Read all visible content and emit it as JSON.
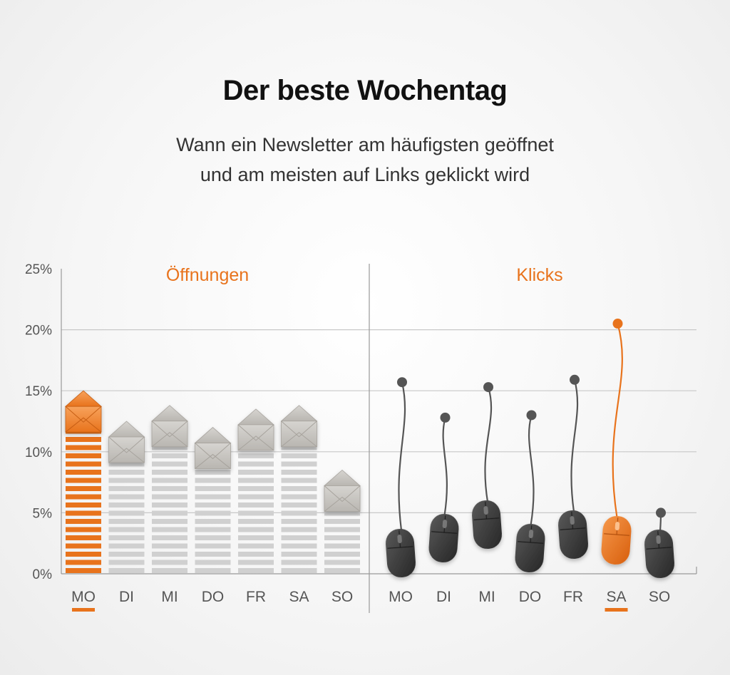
{
  "title": "Der beste Wochentag",
  "subtitle_lines": [
    "Wann ein Newsletter am häufigsten geöffnet",
    "und am meisten auf Links geklickt wird"
  ],
  "colors": {
    "accent": "#e8731c",
    "bar_gray": "#d0d0d0",
    "mouse": "#3a3a3a",
    "cable": "#555555",
    "grid": "#c8c8c8",
    "text": "#555555"
  },
  "chart_data": [
    {
      "type": "bar",
      "title": "Öffnungen",
      "categories": [
        "MO",
        "DI",
        "MI",
        "DO",
        "FR",
        "SA",
        "SO"
      ],
      "values": [
        15.0,
        12.5,
        13.8,
        12.0,
        13.5,
        13.8,
        8.5
      ],
      "highlight": "MO",
      "ylim": [
        0,
        25
      ],
      "yticks": [
        0,
        5,
        10,
        15,
        20,
        25
      ],
      "ytick_labels": [
        "0%",
        "5%",
        "10%",
        "15%",
        "20%",
        "25%"
      ],
      "icon": "envelope-icon"
    },
    {
      "type": "scatter",
      "title": "Klicks",
      "categories": [
        "MO",
        "DI",
        "MI",
        "DO",
        "FR",
        "SA",
        "SO"
      ],
      "values": [
        15.7,
        12.8,
        15.3,
        13.0,
        15.9,
        20.5,
        5.0
      ],
      "highlight": "SA",
      "ylim": [
        0,
        25
      ],
      "icon": "mouse-icon"
    }
  ]
}
